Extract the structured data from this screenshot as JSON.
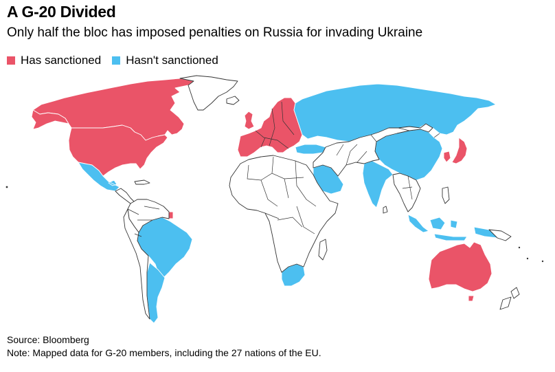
{
  "title": "A G-20 Divided",
  "subtitle": "Only half the bloc has imposed penalties on Russia for invading Ukraine",
  "legend": {
    "sanctioned_label": "Has sanctioned",
    "not_sanctioned_label": "Hasn't sanctioned"
  },
  "colors": {
    "sanctioned": "#ea5468",
    "not_sanctioned": "#4cbff0",
    "other": "#ffffff",
    "outline": "#333333"
  },
  "regions": {
    "sanctioned": [
      "United States",
      "Canada",
      "European Union",
      "United Kingdom",
      "Japan",
      "South Korea",
      "Australia"
    ],
    "not_sanctioned": [
      "Russia",
      "China",
      "India",
      "Indonesia",
      "Saudi Arabia",
      "Turkey",
      "Mexico",
      "Brazil",
      "Argentina",
      "South Africa"
    ]
  },
  "footer": {
    "source": "Source: Bloomberg",
    "note": "Note: Mapped data for G-20 members, including the 27 nations of the EU."
  }
}
